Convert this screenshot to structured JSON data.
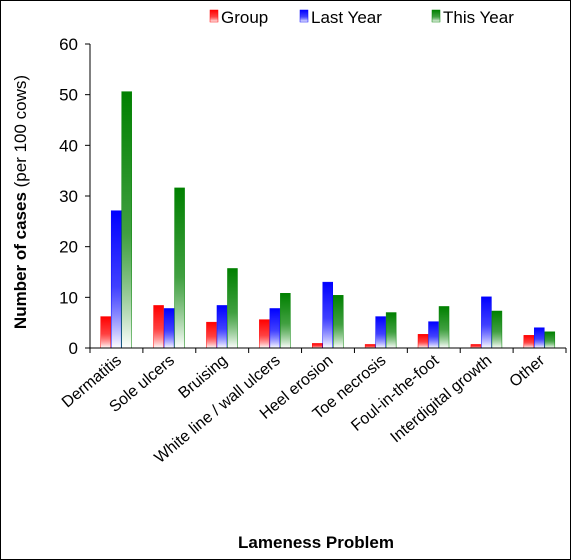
{
  "chart_data": {
    "type": "bar",
    "title": "",
    "xlabel": "Lameness Problem",
    "ylabel_bold": "Number of cases",
    "ylabel_normal": "(per 100 cows)",
    "ylim": [
      0,
      60
    ],
    "yticks": [
      0,
      10,
      20,
      30,
      40,
      50,
      60
    ],
    "grid": false,
    "legend_position": "top-right",
    "categories": [
      "Dermatitis",
      "Sole ulcers",
      "Bruising",
      "White line / wall ulcers",
      "Heel erosion",
      "Toe necrosis",
      "Foul-in-the-foot",
      "Interdigital growth",
      "Other"
    ],
    "series": [
      {
        "name": "Group",
        "color": "#ff0000",
        "values": [
          6.2,
          8.4,
          5.1,
          5.6,
          0.9,
          0.7,
          2.7,
          0.7,
          2.5
        ]
      },
      {
        "name": "Last Year",
        "color": "#0000ff",
        "values": [
          27.1,
          7.8,
          8.4,
          7.8,
          13.0,
          6.2,
          5.2,
          10.1,
          4.0
        ]
      },
      {
        "name": "This Year",
        "color": "#008000",
        "values": [
          50.6,
          31.6,
          15.7,
          10.8,
          10.4,
          7.0,
          8.2,
          7.3,
          3.2
        ]
      }
    ]
  }
}
